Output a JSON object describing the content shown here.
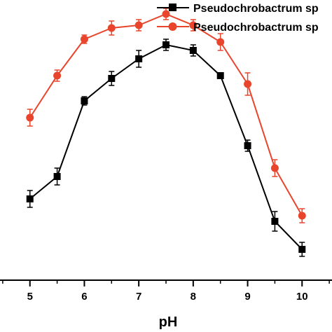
{
  "chart_data": {
    "type": "line",
    "xlabel": "pH",
    "ylabel": "",
    "xlim": [
      4.45,
      10.55
    ],
    "ylim": [
      0,
      100
    ],
    "x_ticks": [
      5,
      6,
      7,
      8,
      9,
      10
    ],
    "x": [
      5,
      5.5,
      6,
      6.5,
      7,
      7.5,
      8,
      8.5,
      9,
      9.5,
      10
    ],
    "grid": false,
    "legend_position": "top-right",
    "series": [
      {
        "name": "Pseudochrobactrum sp",
        "color": "#000000",
        "marker": "square",
        "values": [
          29,
          37,
          64,
          72,
          79,
          84,
          82,
          73,
          48,
          21,
          11
        ],
        "errors": [
          3,
          3,
          1.5,
          2.5,
          3,
          2,
          2,
          1,
          2,
          3.5,
          2.5
        ]
      },
      {
        "name": "Pseudochrobactrum sp",
        "color": "#e8452c",
        "marker": "circle",
        "values": [
          58,
          73,
          86,
          90,
          91,
          95,
          91,
          85,
          70,
          40,
          23
        ],
        "errors": [
          3,
          2,
          1.5,
          2.5,
          2,
          2,
          2,
          3,
          4,
          3,
          2.5
        ]
      }
    ]
  }
}
